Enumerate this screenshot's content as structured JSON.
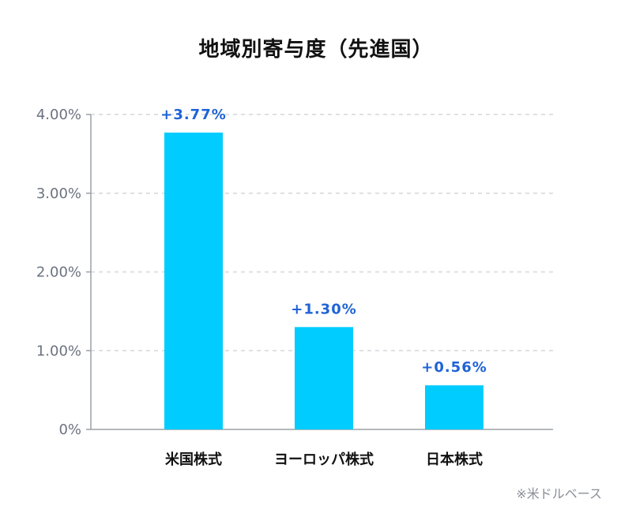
{
  "chart_data": {
    "type": "bar",
    "title": "地域別寄与度（先進国）",
    "categories": [
      "米国株式",
      "ヨーロッパ株式",
      "日本株式"
    ],
    "values": [
      3.77,
      1.3,
      0.56
    ],
    "data_labels": [
      "+3.77%",
      "+1.30%",
      "+0.56%"
    ],
    "ylim": [
      0,
      4
    ],
    "yticks": [
      {
        "value": 0,
        "label": "0%"
      },
      {
        "value": 1,
        "label": "1.00%"
      },
      {
        "value": 2,
        "label": "2.00%"
      },
      {
        "value": 3,
        "label": "3.00%"
      },
      {
        "value": 4,
        "label": "4.00%"
      }
    ],
    "grid": true,
    "colors": {
      "bar": "#00ccff",
      "data_label": "#1f63d6",
      "grid": "#d4d7dc",
      "axis": "#9aa0a6"
    }
  },
  "note": "※米ドルベース"
}
